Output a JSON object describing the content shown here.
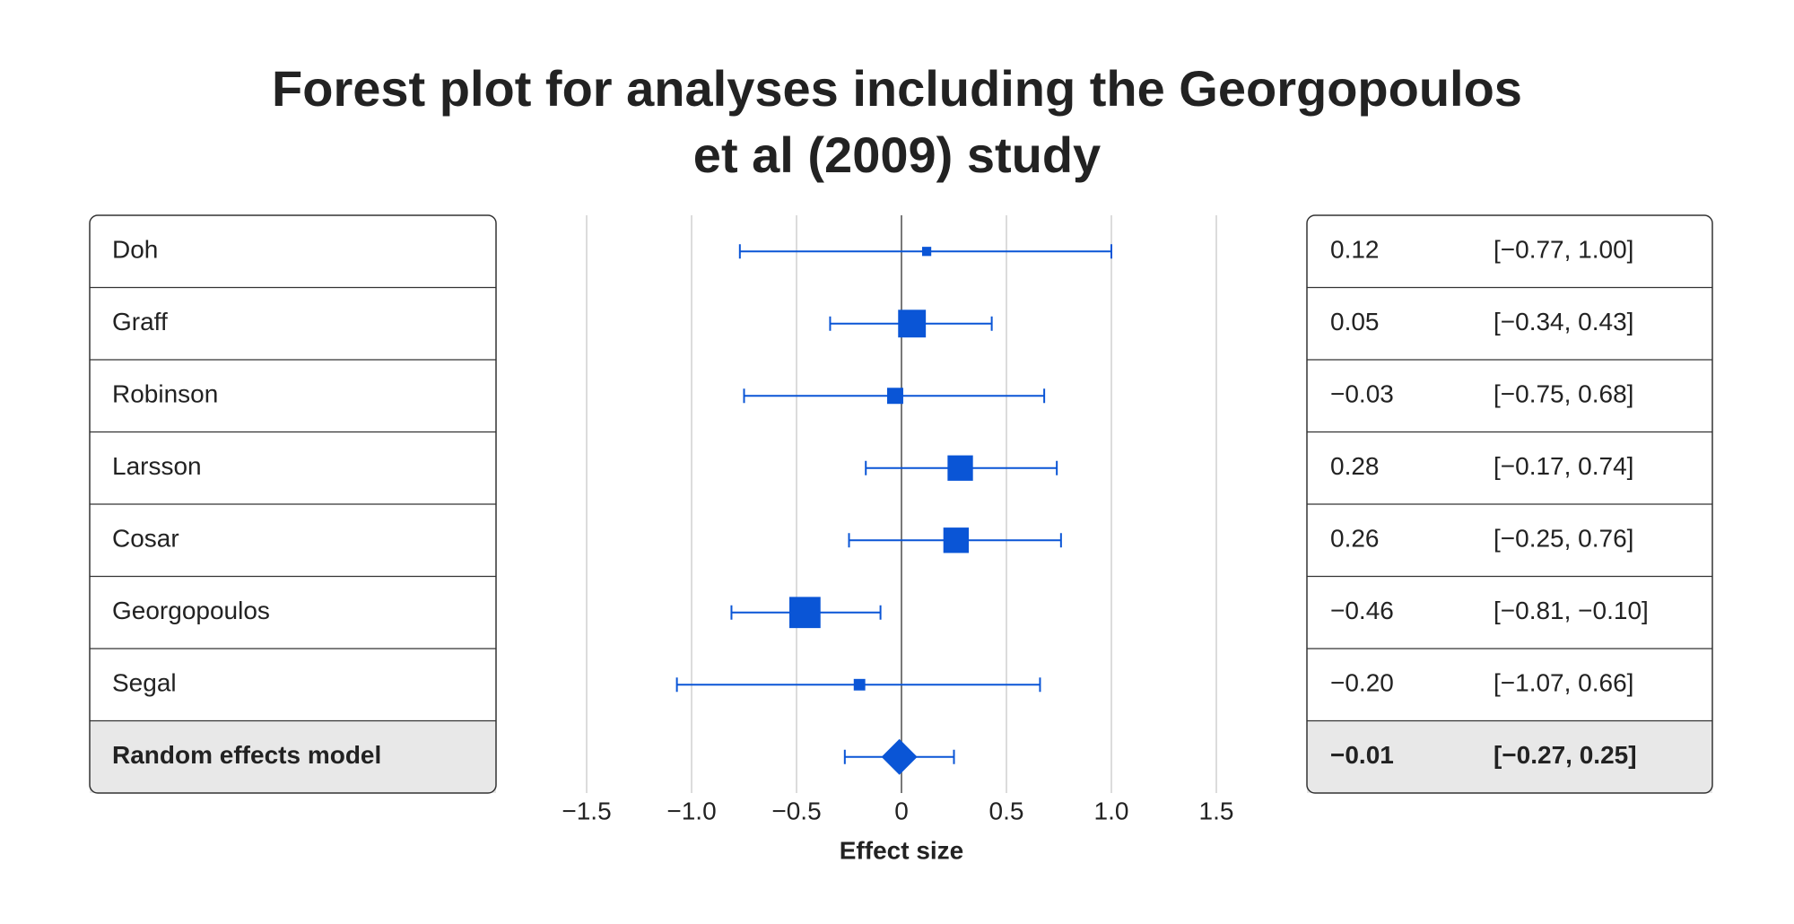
{
  "chart_data": {
    "type": "forest",
    "title": "Forest plot for analyses including the Georgopoulos\net al (2009) study",
    "x_label": "Effect size",
    "categories": [
      "Doh",
      "Graff",
      "Robinson",
      "Larsson",
      "Cosar",
      "Georgopoulos",
      "Segal"
    ],
    "values": [
      0.12,
      0.05,
      -0.03,
      0.28,
      0.26,
      -0.46,
      -0.2
    ],
    "value_labels": [
      "0.12",
      "0.05",
      "−0.03",
      "0.28",
      "0.26",
      "−0.46",
      "−0.20"
    ],
    "lower": [
      -0.77,
      -0.34,
      -0.75,
      -0.17,
      -0.25,
      -0.81,
      -1.07
    ],
    "upper": [
      1.0,
      0.43,
      0.68,
      0.74,
      0.76,
      -0.1,
      0.66
    ],
    "ci_labels": [
      "[−0.77, 1.00]",
      "[−0.34, 0.43]",
      "[−0.75, 0.68]",
      "[−0.17, 0.74]",
      "[−0.25, 0.76]",
      "[−0.81, −0.10]",
      "[−1.07, 0.66]"
    ],
    "weights": [
      2.4,
      21.9,
      7.4,
      18.4,
      18.4,
      27.7,
      3.8
    ],
    "summary": {
      "name": "Random effects model",
      "value": -0.01,
      "value_label": "−0.01",
      "lower": -0.27,
      "upper": 0.25,
      "ci_label": "[−0.27, 0.25]"
    },
    "color": "#0a55d6",
    "xlim": [
      -1.5,
      1.5
    ],
    "xticks": [
      {
        "value": -1.5,
        "label": "−1.5"
      },
      {
        "value": -1.0,
        "label": "−1.0"
      },
      {
        "value": -0.5,
        "label": "−0.5"
      },
      0,
      0.5,
      {
        "value": 1.0,
        "label": "1.0"
      },
      1.5
    ],
    "grid": true
  }
}
